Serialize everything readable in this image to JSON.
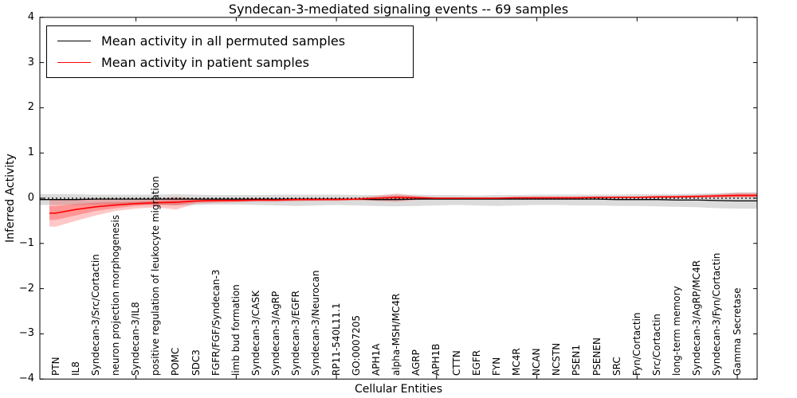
{
  "chart_data": {
    "type": "line",
    "title": "Syndecan-3-mediated signaling events -- 69 samples",
    "xlabel": "Cellular Entities",
    "ylabel": "Inferred Activity",
    "ylim": [
      -4,
      4
    ],
    "yticks": [
      -4,
      -3,
      -2,
      -1,
      0,
      1,
      2,
      3,
      4
    ],
    "ytick_labels": [
      "−4",
      "−3",
      "−2",
      "−1",
      "0",
      "1",
      "2",
      "3",
      "4"
    ],
    "grid": false,
    "legend_position": "upper left",
    "legend": {
      "items": [
        {
          "label": "Mean activity in all permuted samples",
          "color": "#000000"
        },
        {
          "label": "Mean activity in patient samples",
          "color": "#ff0000"
        }
      ]
    },
    "categories": [
      "PTN",
      "IL8",
      "Syndecan-3/Src/Cortactin",
      "neuron projection morphogenesis",
      "Syndecan-3/IL8",
      "positive regulation of leukocyte migration",
      "POMC",
      "SDC3",
      "FGFR/FGF/Syndecan-3",
      "limb bud formation",
      "Syndecan-3/CASK",
      "Syndecan-3/AgRP",
      "Syndecan-3/EGFR",
      "Syndecan-3/Neurocan",
      "RP11-540L11.1",
      "GO:0007205",
      "APH1A",
      "alpha-MSH/MC4R",
      "AGRP",
      "APH1B",
      "CTTN",
      "EGFR",
      "FYN",
      "MC4R",
      "NCAN",
      "NCSTN",
      "PSEN1",
      "PSENEN",
      "SRC",
      "Fyn/Cortactin",
      "Src/Cortactin",
      "long-term memory",
      "Syndecan-3/AgRP/MC4R",
      "Syndecan-3/Fyn/Cortactin",
      "Gamma Secretase"
    ],
    "series": [
      {
        "name": "Mean activity in all permuted samples",
        "color": "#000000",
        "values": [
          -0.03,
          -0.03,
          -0.02,
          -0.02,
          -0.02,
          -0.02,
          -0.02,
          -0.02,
          -0.02,
          -0.02,
          -0.02,
          -0.02,
          -0.02,
          -0.02,
          -0.02,
          -0.02,
          -0.03,
          -0.03,
          -0.02,
          -0.02,
          -0.02,
          -0.02,
          -0.02,
          -0.02,
          -0.02,
          -0.02,
          -0.02,
          -0.02,
          -0.03,
          -0.03,
          -0.03,
          -0.04,
          -0.04,
          -0.05,
          -0.06
        ]
      },
      {
        "name": "Mean activity in patient samples",
        "color": "#ff0000",
        "values": [
          -0.33,
          -0.25,
          -0.19,
          -0.15,
          -0.12,
          -0.1,
          -0.09,
          -0.06,
          -0.05,
          -0.05,
          -0.04,
          -0.04,
          -0.03,
          -0.03,
          -0.03,
          -0.02,
          0.0,
          0.02,
          0.01,
          0.0,
          0.0,
          0.0,
          0.0,
          0.01,
          0.01,
          0.01,
          0.01,
          0.02,
          0.02,
          0.02,
          0.03,
          0.03,
          0.04,
          0.05,
          0.06
        ]
      }
    ],
    "bands": [
      {
        "name": "permuted-samples-band",
        "color": "rgba(0,0,0,0.14)",
        "upper": [
          0.09,
          0.09,
          0.08,
          0.08,
          0.08,
          0.08,
          0.09,
          0.08,
          0.07,
          0.07,
          0.07,
          0.08,
          0.08,
          0.08,
          0.08,
          0.07,
          0.07,
          0.08,
          0.08,
          0.07,
          0.07,
          0.06,
          0.07,
          0.07,
          0.08,
          0.08,
          0.08,
          0.08,
          0.08,
          0.09,
          0.09,
          0.09,
          0.1,
          0.11,
          0.13
        ],
        "lower": [
          -0.15,
          -0.15,
          -0.14,
          -0.14,
          -0.14,
          -0.15,
          -0.16,
          -0.15,
          -0.14,
          -0.14,
          -0.15,
          -0.16,
          -0.17,
          -0.16,
          -0.15,
          -0.16,
          -0.17,
          -0.18,
          -0.17,
          -0.16,
          -0.15,
          -0.16,
          -0.17,
          -0.16,
          -0.15,
          -0.15,
          -0.16,
          -0.16,
          -0.17,
          -0.17,
          -0.18,
          -0.19,
          -0.2,
          -0.22,
          -0.23
        ]
      },
      {
        "name": "patient-samples-band-outer",
        "color": "rgba(255,0,0,0.22)",
        "upper": [
          -0.02,
          -0.02,
          -0.02,
          -0.03,
          -0.03,
          -0.02,
          0.03,
          -0.01,
          -0.01,
          -0.01,
          -0.01,
          -0.01,
          0.0,
          0.0,
          0.0,
          0.01,
          0.05,
          0.1,
          0.05,
          0.02,
          0.02,
          0.02,
          0.02,
          0.02,
          0.03,
          0.03,
          0.03,
          0.03,
          0.04,
          0.04,
          0.05,
          0.06,
          0.07,
          0.09,
          0.12
        ],
        "lower": [
          -0.63,
          -0.5,
          -0.38,
          -0.28,
          -0.23,
          -0.2,
          -0.25,
          -0.12,
          -0.1,
          -0.09,
          -0.08,
          -0.08,
          -0.07,
          -0.06,
          -0.06,
          -0.05,
          -0.06,
          -0.08,
          -0.04,
          -0.02,
          -0.02,
          -0.02,
          -0.02,
          -0.01,
          -0.01,
          -0.01,
          -0.01,
          0.0,
          0.0,
          0.0,
          0.0,
          0.01,
          0.01,
          0.01,
          0.02
        ]
      },
      {
        "name": "patient-samples-band-inner",
        "color": "rgba(255,0,0,0.25)",
        "upper": [
          -0.17,
          -0.13,
          -0.1,
          -0.09,
          -0.08,
          -0.06,
          -0.04,
          -0.04,
          -0.03,
          -0.03,
          -0.03,
          -0.02,
          -0.02,
          -0.02,
          -0.02,
          -0.01,
          0.02,
          0.05,
          0.03,
          0.01,
          0.01,
          0.01,
          0.01,
          0.01,
          0.02,
          0.02,
          0.02,
          0.02,
          0.03,
          0.03,
          0.04,
          0.04,
          0.05,
          0.07,
          0.09
        ],
        "lower": [
          -0.48,
          -0.38,
          -0.28,
          -0.22,
          -0.17,
          -0.14,
          -0.15,
          -0.09,
          -0.08,
          -0.07,
          -0.06,
          -0.06,
          -0.05,
          -0.05,
          -0.04,
          -0.04,
          -0.03,
          -0.03,
          -0.02,
          -0.01,
          -0.01,
          -0.01,
          -0.01,
          0.0,
          0.0,
          0.0,
          0.0,
          0.0,
          0.01,
          0.01,
          0.01,
          0.01,
          0.02,
          0.03,
          0.03
        ]
      }
    ],
    "zero_line": {
      "value": 0,
      "style": "dotted",
      "color": "#000000"
    }
  }
}
